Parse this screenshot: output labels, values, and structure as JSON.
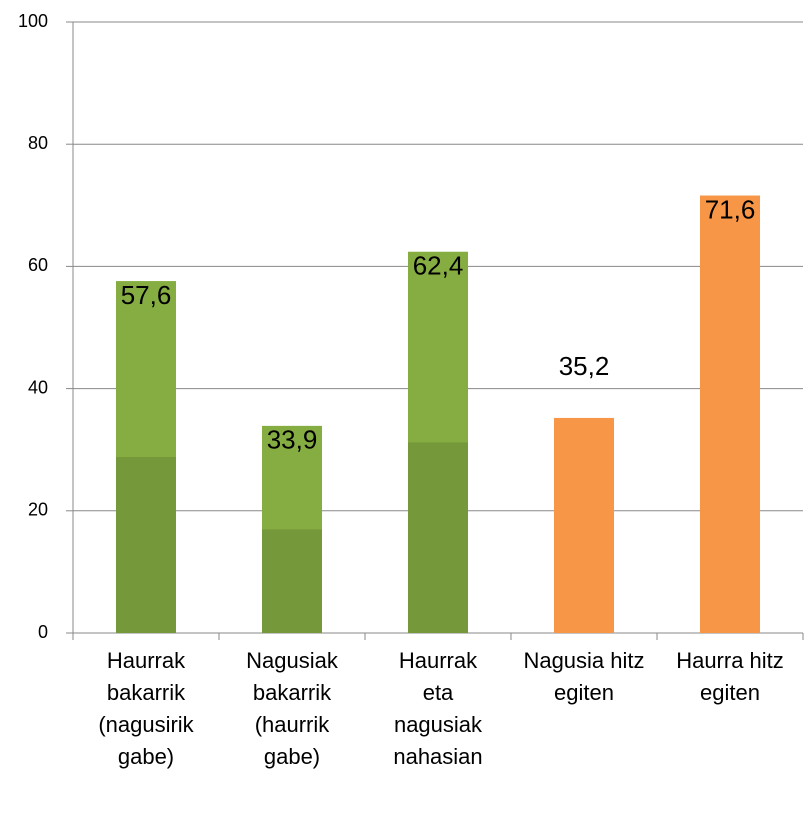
{
  "chart_data": {
    "type": "bar",
    "categories": [
      "Haurrak bakarrik (nagusirik gabe)",
      "Nagusiak bakarrik (haurrik gabe)",
      "Haurrak eta nagusiak nahasian",
      "Nagusia hitz egiten",
      "Haurra hitz egiten"
    ],
    "values": [
      57.6,
      33.9,
      62.4,
      35.2,
      71.6
    ],
    "value_labels": [
      "57,6",
      "33,9",
      "62,4",
      "35,2",
      "71,6"
    ],
    "colors": [
      "#86ad42",
      "#86ad42",
      "#86ad42",
      "#f79646",
      "#f79646"
    ],
    "ylim": [
      0,
      100
    ],
    "yticks": [
      0,
      20,
      40,
      60,
      80,
      100
    ],
    "grid": true
  }
}
